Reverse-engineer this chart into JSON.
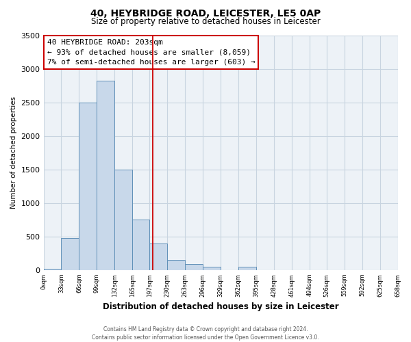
{
  "title": "40, HEYBRIDGE ROAD, LEICESTER, LE5 0AP",
  "subtitle": "Size of property relative to detached houses in Leicester",
  "xlabel": "Distribution of detached houses by size in Leicester",
  "ylabel": "Number of detached properties",
  "footer_line1": "Contains HM Land Registry data © Crown copyright and database right 2024.",
  "footer_line2": "Contains public sector information licensed under the Open Government Licence v3.0.",
  "bar_edges": [
    0,
    33,
    66,
    99,
    132,
    165,
    197,
    230,
    263,
    296,
    329,
    362,
    395,
    428,
    461,
    494,
    526,
    559,
    592,
    625,
    658
  ],
  "bar_heights": [
    15,
    480,
    2500,
    2820,
    1500,
    750,
    400,
    150,
    90,
    55,
    0,
    55,
    0,
    0,
    0,
    0,
    0,
    0,
    0,
    0
  ],
  "bar_color": "#c8d8ea",
  "bar_edge_color": "#6090b8",
  "property_line_x": 203,
  "property_line_color": "#cc0000",
  "annotation_text_line1": "40 HEYBRIDGE ROAD: 203sqm",
  "annotation_text_line2": "← 93% of detached houses are smaller (8,059)",
  "annotation_text_line3": "7% of semi-detached houses are larger (603) →",
  "annotation_box_color": "#ffffff",
  "annotation_box_edge_color": "#cc0000",
  "ylim": [
    0,
    3500
  ],
  "yticks": [
    0,
    500,
    1000,
    1500,
    2000,
    2500,
    3000,
    3500
  ],
  "grid_color": "#c8d4e0",
  "background_color": "#edf2f7",
  "tick_labels": [
    "0sqm",
    "33sqm",
    "66sqm",
    "99sqm",
    "132sqm",
    "165sqm",
    "197sqm",
    "230sqm",
    "263sqm",
    "296sqm",
    "329sqm",
    "362sqm",
    "395sqm",
    "428sqm",
    "461sqm",
    "494sqm",
    "526sqm",
    "559sqm",
    "592sqm",
    "625sqm",
    "658sqm"
  ]
}
